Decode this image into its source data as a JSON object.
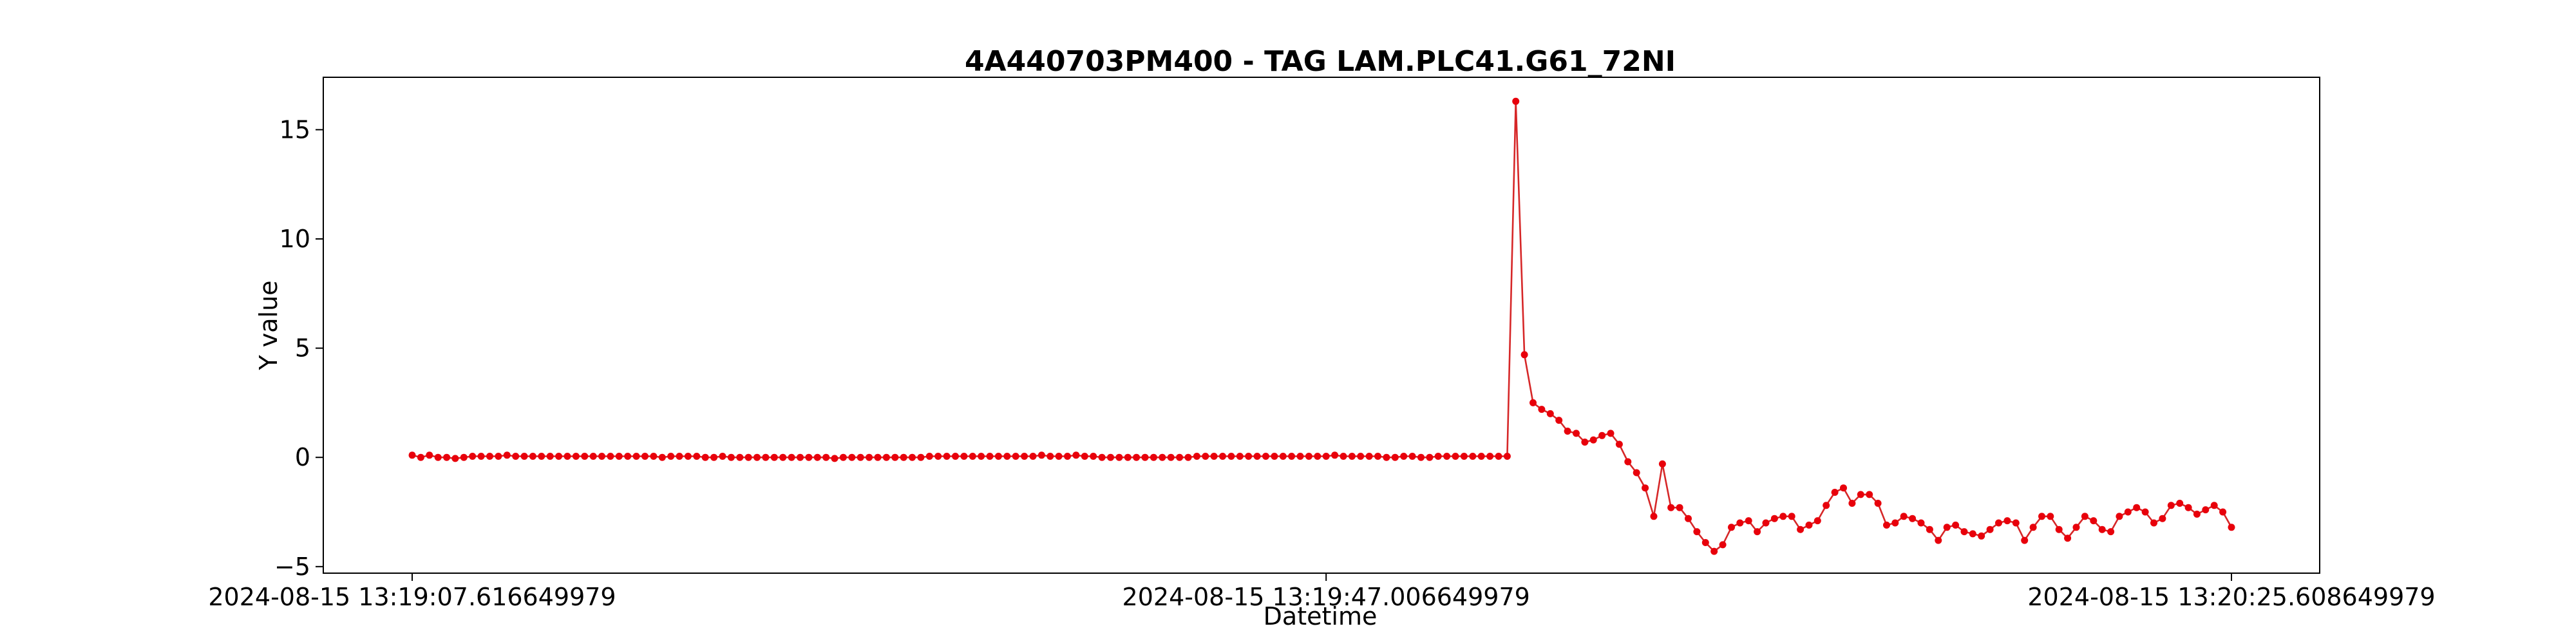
{
  "chart_data": {
    "type": "line",
    "title": "4A440703PM400 - TAG LAM.PLC41.G61_72NI",
    "xlabel": "Datetime",
    "ylabel": "Y value",
    "ylim": [
      -5.3,
      17.4
    ],
    "yticks": [
      -5,
      0,
      5,
      10,
      15
    ],
    "xtick_labels": [
      "2024-08-15 13:19:07.616649979",
      "2024-08-15 13:19:47.006649979",
      "2024-08-15 13:20:25.608649979"
    ],
    "grid": false,
    "legend": "none",
    "line_color": "#d62728",
    "marker_color": "#e8000b",
    "series": [
      {
        "values": [
          0.1,
          0.0,
          0.1,
          0.0,
          0.0,
          -0.05,
          0.0,
          0.05,
          0.05,
          0.05,
          0.05,
          0.1,
          0.05,
          0.05,
          0.05,
          0.05,
          0.05,
          0.05,
          0.05,
          0.05,
          0.05,
          0.05,
          0.05,
          0.05,
          0.05,
          0.05,
          0.05,
          0.05,
          0.05,
          0.0,
          0.05,
          0.05,
          0.05,
          0.05,
          0.0,
          0.0,
          0.05,
          0.0,
          0.0,
          0.0,
          0.0,
          0.0,
          0.0,
          0.0,
          0.0,
          0.0,
          0.0,
          0.0,
          0.0,
          -0.05,
          0.0,
          0.0,
          0.0,
          0.0,
          0.0,
          0.0,
          0.0,
          0.0,
          0.0,
          0.0,
          0.05,
          0.05,
          0.05,
          0.05,
          0.05,
          0.05,
          0.05,
          0.05,
          0.05,
          0.05,
          0.05,
          0.05,
          0.05,
          0.1,
          0.05,
          0.05,
          0.05,
          0.1,
          0.05,
          0.05,
          0.0,
          0.0,
          0.0,
          0.0,
          0.0,
          0.0,
          0.0,
          0.0,
          0.0,
          0.0,
          0.0,
          0.05,
          0.05,
          0.05,
          0.05,
          0.05,
          0.05,
          0.05,
          0.05,
          0.05,
          0.05,
          0.05,
          0.05,
          0.05,
          0.05,
          0.05,
          0.05,
          0.1,
          0.05,
          0.05,
          0.05,
          0.05,
          0.05,
          0.0,
          0.0,
          0.05,
          0.05,
          0.0,
          0.0,
          0.05,
          0.05,
          0.05,
          0.05,
          0.05,
          0.05,
          0.05,
          0.05,
          0.05,
          16.3,
          4.7,
          2.5,
          2.2,
          2.0,
          1.7,
          1.2,
          1.1,
          0.7,
          0.8,
          1.0,
          1.1,
          0.6,
          -0.2,
          -0.7,
          -1.4,
          -2.7,
          -0.3,
          -2.3,
          -2.3,
          -2.8,
          -3.4,
          -3.9,
          -4.3,
          -4.0,
          -3.2,
          -3.0,
          -2.9,
          -3.4,
          -3.0,
          -2.8,
          -2.7,
          -2.7,
          -3.3,
          -3.1,
          -2.9,
          -2.2,
          -1.6,
          -1.4,
          -2.1,
          -1.7,
          -1.7,
          -2.1,
          -3.1,
          -3.0,
          -2.7,
          -2.8,
          -3.0,
          -3.3,
          -3.8,
          -3.2,
          -3.1,
          -3.4,
          -3.5,
          -3.6,
          -3.3,
          -3.0,
          -2.9,
          -3.0,
          -3.8,
          -3.2,
          -2.7,
          -2.7,
          -3.3,
          -3.7,
          -3.2,
          -2.7,
          -2.9,
          -3.3,
          -3.4,
          -2.7,
          -2.5,
          -2.3,
          -2.5,
          -3.0,
          -2.8,
          -2.2,
          -2.1,
          -2.3,
          -2.6,
          -2.4,
          -2.2,
          -2.5,
          -3.2
        ]
      }
    ]
  }
}
